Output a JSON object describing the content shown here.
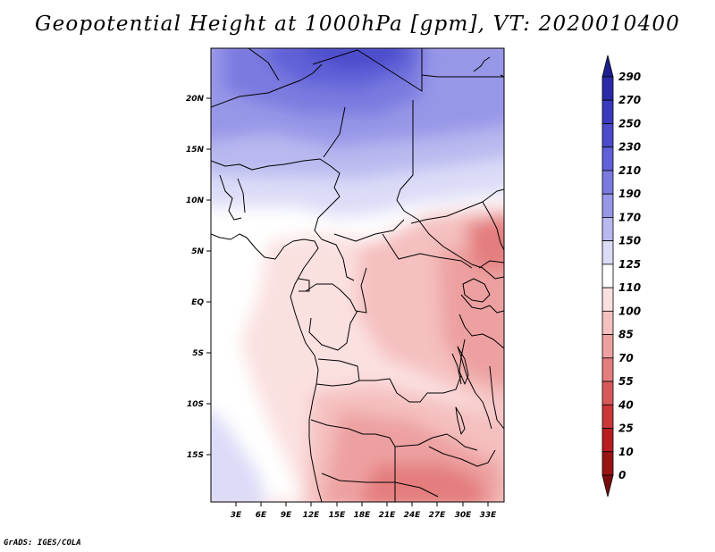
{
  "title": "Geopotential Height at 1000hPa [gpm], VT: 2020010400",
  "footer": "GrADS: IGES/COLA",
  "map": {
    "lat_ticks": [
      "20N",
      "15N",
      "10N",
      "5N",
      "EQ",
      "5S",
      "10S",
      "15S"
    ],
    "lon_ticks": [
      "3E",
      "6E",
      "9E",
      "12E",
      "15E",
      "18E",
      "21E",
      "24E",
      "27E",
      "30E",
      "33E"
    ]
  },
  "colorbar": {
    "levels": [
      "290",
      "270",
      "250",
      "230",
      "210",
      "190",
      "170",
      "150",
      "125",
      "110",
      "100",
      "85",
      "70",
      "55",
      "40",
      "25",
      "10",
      "0"
    ],
    "colors": [
      "#1f1f8f",
      "#2b2ba8",
      "#3a3abf",
      "#4b4bcc",
      "#6060d8",
      "#7a7ae0",
      "#9797e8",
      "#b9b9f0",
      "#dcdcf8",
      "#ffffff",
      "#fbe0e0",
      "#f5c0c0",
      "#eda0a0",
      "#e47d7d",
      "#d95959",
      "#cc3737",
      "#b81e1e",
      "#9a1414",
      "#7a0c0c"
    ]
  }
}
